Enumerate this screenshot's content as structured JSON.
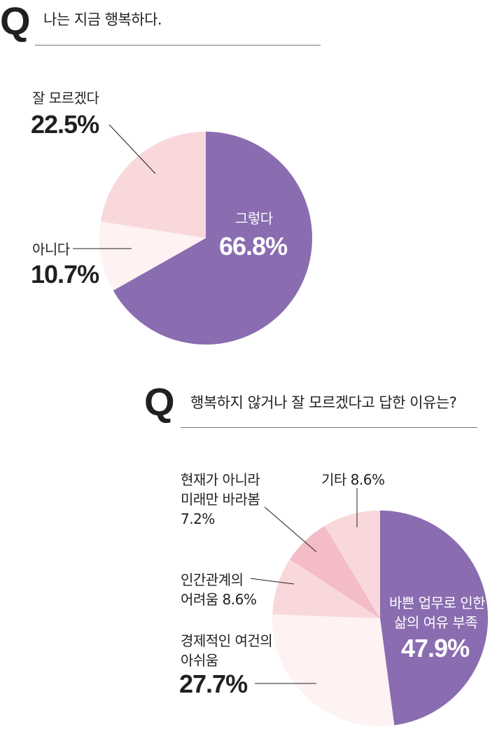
{
  "chart_data": [
    {
      "type": "pie",
      "title": "나는 지금 행복하다.",
      "slices": [
        {
          "label": "그렇다",
          "value": 66.8,
          "value_text": "66.8%",
          "color": "#8a6cb0"
        },
        {
          "label": "아니다",
          "value": 10.7,
          "value_text": "10.7%",
          "color": "#fef2f2"
        },
        {
          "label": "잘 모르겠다",
          "value": 22.5,
          "value_text": "22.5%",
          "color": "#f9d8dc"
        }
      ]
    },
    {
      "type": "pie",
      "title": "행복하지 않거나 잘 모르겠다고 답한 이유는?",
      "slices": [
        {
          "label": "바쁜 업무로 인한 삶의 여유 부족",
          "label_lines": [
            "바쁜 업무로 인한",
            "삶의 여유 부족"
          ],
          "value": 47.9,
          "value_text": "47.9%",
          "color": "#8a6cb0"
        },
        {
          "label": "경제적인 여건의 아쉬움",
          "label_lines": [
            "경제적인 여건의",
            "아쉬움"
          ],
          "value": 27.7,
          "value_text": "27.7%",
          "color": "#fef2f2"
        },
        {
          "label": "인간관계의 어려움 8.6%",
          "label_lines": [
            "인간관계의",
            "어려움 8.6%"
          ],
          "value": 8.6,
          "color": "#f9d8dc"
        },
        {
          "label": "현재가 아니라 미래만 바라봄 7.2%",
          "label_lines": [
            "현재가 아니라",
            "미래만 바라봄",
            "7.2%"
          ],
          "value": 7.2,
          "color": "#f4bcc6"
        },
        {
          "label": "기타 8.6%",
          "label_lines": [
            "기타 8.6%"
          ],
          "value": 8.6,
          "color": "#f9d8dc"
        }
      ]
    }
  ],
  "q_mark": "Q"
}
